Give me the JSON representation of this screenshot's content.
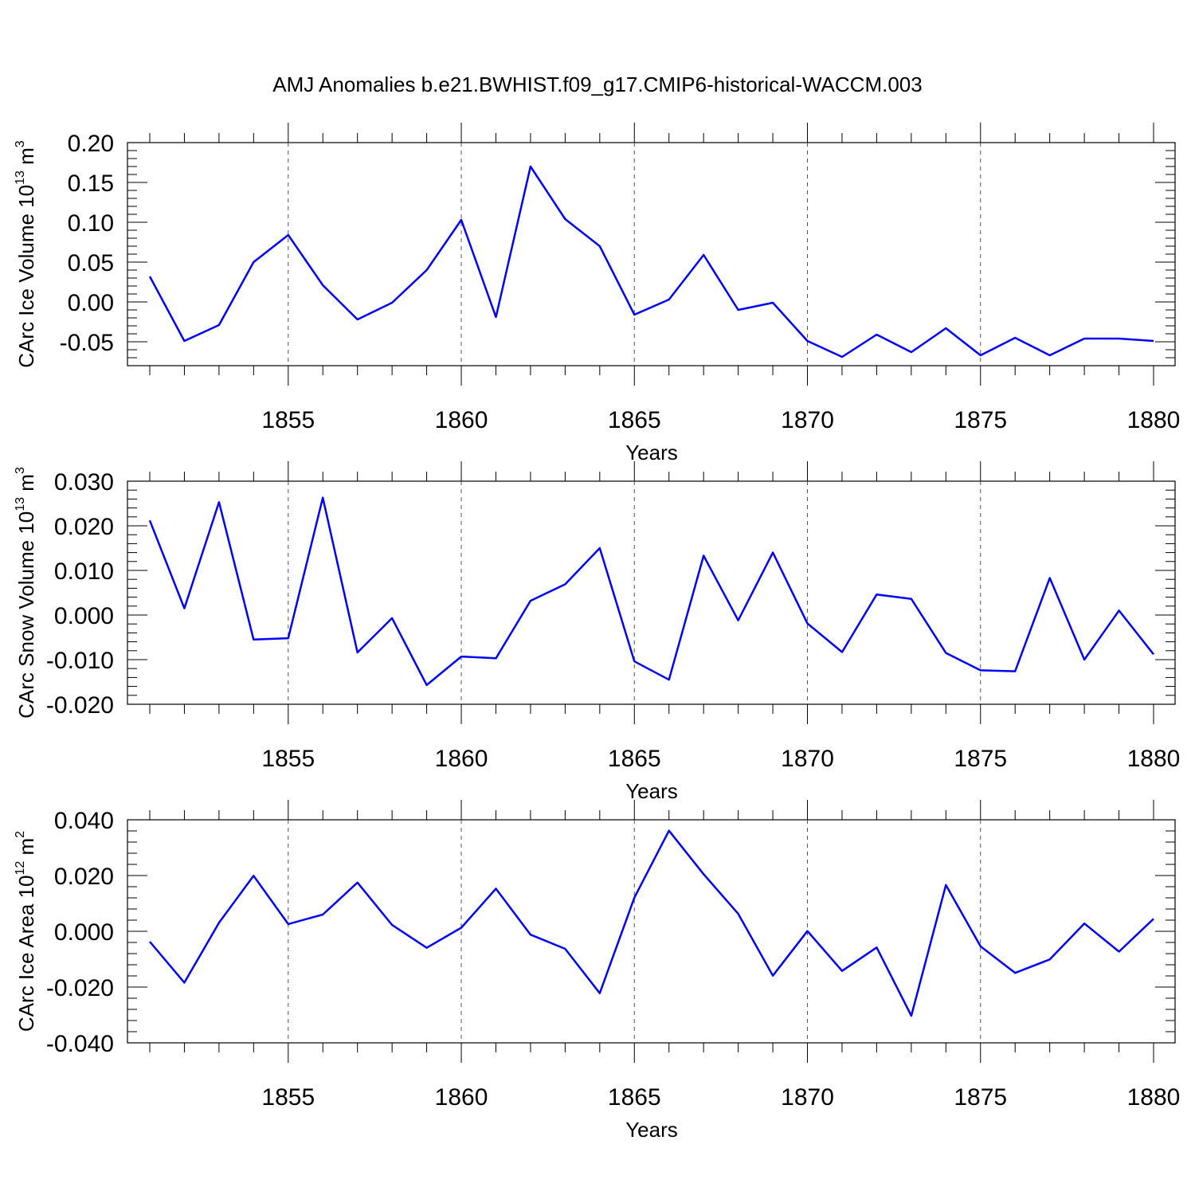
{
  "title": "AMJ Anomalies b.e21.BWHIST.f09_g17.CMIP6-historical-WACCM.003",
  "colors": {
    "series": "#0000ff",
    "axis": "#000000",
    "grid": "#555555"
  },
  "chart_data": [
    {
      "type": "line",
      "ylabel": {
        "text": "CArc Ice Volume 10",
        "sup": "13",
        "unit": " m",
        "unit_sup": "3"
      },
      "xlabel": "Years",
      "xlim": [
        1851,
        1880
      ],
      "ylim": [
        -0.08,
        0.2
      ],
      "xticks": [
        1855,
        1860,
        1865,
        1870,
        1875,
        1880
      ],
      "xtick_labels": [
        "1855",
        "1860",
        "1865",
        "1870",
        "1875",
        "1880"
      ],
      "yticks": [
        -0.05,
        0.0,
        0.05,
        0.1,
        0.15,
        0.2
      ],
      "ytick_labels": [
        "-0.05",
        "0.00",
        "0.05",
        "0.10",
        "0.15",
        "0.20"
      ],
      "grid": "vertical dashed at major x ticks",
      "x": [
        1851,
        1852,
        1853,
        1854,
        1855,
        1856,
        1857,
        1858,
        1859,
        1860,
        1861,
        1862,
        1863,
        1864,
        1865,
        1866,
        1867,
        1868,
        1869,
        1870,
        1871,
        1872,
        1873,
        1874,
        1875,
        1876,
        1877,
        1878,
        1879,
        1880
      ],
      "values": [
        0.032,
        -0.049,
        -0.029,
        0.05,
        0.084,
        0.021,
        -0.022,
        -0.001,
        0.04,
        0.103,
        -0.019,
        0.17,
        0.104,
        0.07,
        -0.016,
        0.003,
        0.059,
        -0.01,
        -0.001,
        -0.049,
        -0.069,
        -0.041,
        -0.063,
        -0.033,
        -0.067,
        -0.045,
        -0.067,
        -0.046,
        -0.046,
        -0.049
      ]
    },
    {
      "type": "line",
      "ylabel": {
        "text": "CArc Snow Volume 10",
        "sup": "13",
        "unit": " m",
        "unit_sup": "3"
      },
      "xlabel": "Years",
      "xlim": [
        1851,
        1880
      ],
      "ylim": [
        -0.02,
        0.03
      ],
      "xticks": [
        1855,
        1860,
        1865,
        1870,
        1875,
        1880
      ],
      "xtick_labels": [
        "1855",
        "1860",
        "1865",
        "1870",
        "1875",
        "1880"
      ],
      "yticks": [
        -0.02,
        -0.01,
        0.0,
        0.01,
        0.02,
        0.03
      ],
      "ytick_labels": [
        "-0.020",
        "-0.010",
        "0.000",
        "0.010",
        "0.020",
        "0.030"
      ],
      "grid": "vertical dashed at major x ticks",
      "x": [
        1851,
        1852,
        1853,
        1854,
        1855,
        1856,
        1857,
        1858,
        1859,
        1860,
        1861,
        1862,
        1863,
        1864,
        1865,
        1866,
        1867,
        1868,
        1869,
        1870,
        1871,
        1872,
        1873,
        1874,
        1875,
        1876,
        1877,
        1878,
        1879,
        1880
      ],
      "values": [
        0.0212,
        0.0015,
        0.0253,
        -0.0055,
        -0.0052,
        0.0263,
        -0.0084,
        -0.0007,
        -0.0157,
        -0.0093,
        -0.0097,
        0.0032,
        0.0069,
        0.015,
        -0.0104,
        -0.0145,
        0.0133,
        -0.0012,
        0.014,
        -0.0019,
        -0.0083,
        0.0046,
        0.0036,
        -0.0085,
        -0.0124,
        -0.0126,
        0.0083,
        -0.01,
        0.001,
        -0.0088
      ]
    },
    {
      "type": "line",
      "ylabel": {
        "text": "CArc Ice Area 10",
        "sup": "12",
        "unit": " m",
        "unit_sup": "2"
      },
      "xlabel": "Years",
      "xlim": [
        1851,
        1880
      ],
      "ylim": [
        -0.04,
        0.04
      ],
      "xticks": [
        1855,
        1860,
        1865,
        1870,
        1875,
        1880
      ],
      "xtick_labels": [
        "1855",
        "1860",
        "1865",
        "1870",
        "1875",
        "1880"
      ],
      "yticks": [
        -0.04,
        -0.02,
        0.0,
        0.02,
        0.04
      ],
      "ytick_labels": [
        "-0.040",
        "-0.020",
        "0.000",
        "0.020",
        "0.040"
      ],
      "grid": "vertical dashed at major x ticks",
      "x": [
        1851,
        1852,
        1853,
        1854,
        1855,
        1856,
        1857,
        1858,
        1859,
        1860,
        1861,
        1862,
        1863,
        1864,
        1865,
        1866,
        1867,
        1868,
        1869,
        1870,
        1871,
        1872,
        1873,
        1874,
        1875,
        1876,
        1877,
        1878,
        1879,
        1880
      ],
      "values": [
        -0.0037,
        -0.0184,
        0.0031,
        0.0199,
        0.0026,
        0.006,
        0.0175,
        0.0023,
        -0.0059,
        0.0013,
        0.0153,
        -0.0012,
        -0.0063,
        -0.0222,
        0.0121,
        0.0361,
        0.0205,
        0.0063,
        -0.0159,
        0.0001,
        -0.0142,
        -0.0058,
        -0.0303,
        0.0166,
        -0.0054,
        -0.0149,
        -0.0101,
        0.0028,
        -0.0073,
        0.0045
      ]
    }
  ]
}
